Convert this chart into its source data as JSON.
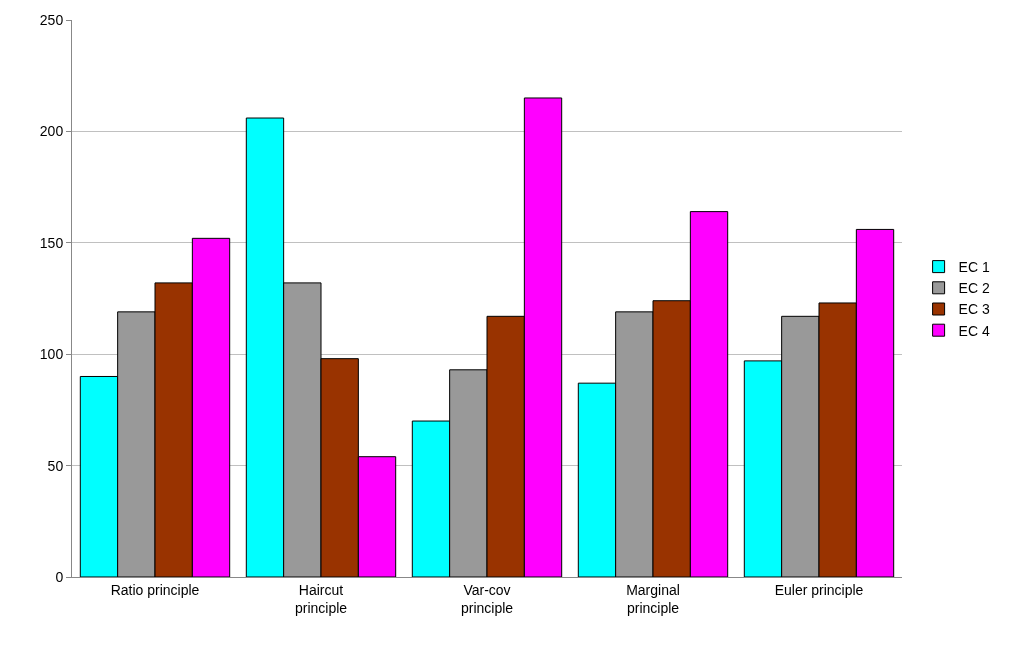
{
  "chart_data": {
    "type": "bar",
    "categories": [
      "Ratio principle",
      "Haircut principle",
      "Var-cov principle",
      "Marginal principle",
      "Euler principle"
    ],
    "series": [
      {
        "name": "EC 1",
        "color": "#00ffff",
        "values": [
          90,
          206,
          70,
          87,
          97
        ]
      },
      {
        "name": "EC 2",
        "color": "#999999",
        "values": [
          119,
          132,
          93,
          119,
          117
        ]
      },
      {
        "name": "EC 3",
        "color": "#993300",
        "values": [
          132,
          98,
          117,
          124,
          123
        ]
      },
      {
        "name": "EC 4",
        "color": "#ff00ff",
        "values": [
          152,
          54,
          215,
          164,
          156
        ]
      }
    ],
    "ylim": [
      0,
      250
    ],
    "yticks": [
      0,
      50,
      100,
      150,
      200,
      250
    ],
    "grid": "y",
    "legend": "right"
  }
}
